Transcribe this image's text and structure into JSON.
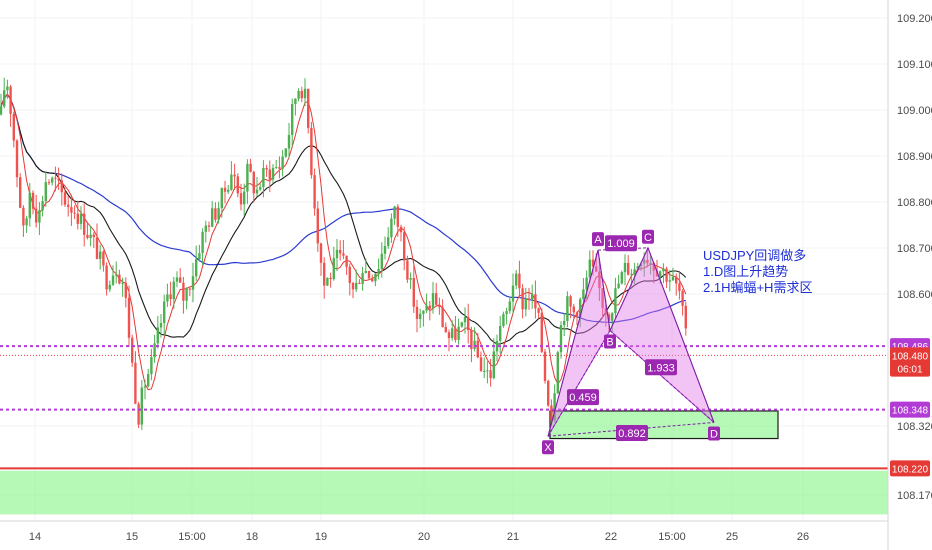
{
  "chart_data": {
    "type": "candlestick",
    "symbol_note": [
      "USDJPY回调做多",
      "1.D图上升趋势",
      "2.1H蝙蝠+H需求区"
    ],
    "x_tick_labels": [
      "14",
      "15",
      "15:00",
      "18",
      "19",
      "20",
      "21",
      "22",
      "15:00",
      "25",
      "26"
    ],
    "y_tick_labels": [
      "109.200",
      "109.100",
      "109.000",
      "108.900",
      "108.800",
      "108.700",
      "108.600",
      "108.320",
      "108.170"
    ],
    "ylim": [
      108.12,
      109.25
    ],
    "price_tags": [
      {
        "label": "108.486",
        "value": 108.486,
        "color": "#b23bd6",
        "kind": "line-dashed"
      },
      {
        "label": "108.480",
        "value": 108.466,
        "color": "#e53935",
        "kind": "current"
      },
      {
        "label": "06:01",
        "value": 108.437,
        "color": "#e53935",
        "kind": "timer"
      },
      {
        "label": "108.348",
        "value": 108.348,
        "color": "#b23bd6",
        "kind": "line-dashed"
      },
      {
        "label": "108.220",
        "value": 108.22,
        "color": "#e53935",
        "kind": "line-solid"
      }
    ],
    "bat_pattern": {
      "points": [
        {
          "label": "X",
          "t": 548,
          "price": 108.29
        },
        {
          "label": "A",
          "t": 598,
          "price": 108.695
        },
        {
          "label": "B",
          "t": 610,
          "price": 108.52
        },
        {
          "label": "C",
          "t": 648,
          "price": 108.7
        },
        {
          "label": "D",
          "t": 714,
          "price": 108.32
        }
      ],
      "ratios": [
        {
          "label": "1.009",
          "t": 621,
          "price": 108.71
        },
        {
          "label": "0.459",
          "t": 583,
          "price": 108.375
        },
        {
          "label": "1.933",
          "t": 661,
          "price": 108.44
        },
        {
          "label": "0.892",
          "t": 632,
          "price": 108.297
        }
      ]
    },
    "demand_zones": [
      {
        "price_top": 108.345,
        "price_bottom": 108.285,
        "t_start": 550,
        "t_end": 778
      },
      {
        "price_top": 108.215,
        "price_bottom": 108.12,
        "t_start": 0,
        "t_end": 888
      }
    ]
  }
}
